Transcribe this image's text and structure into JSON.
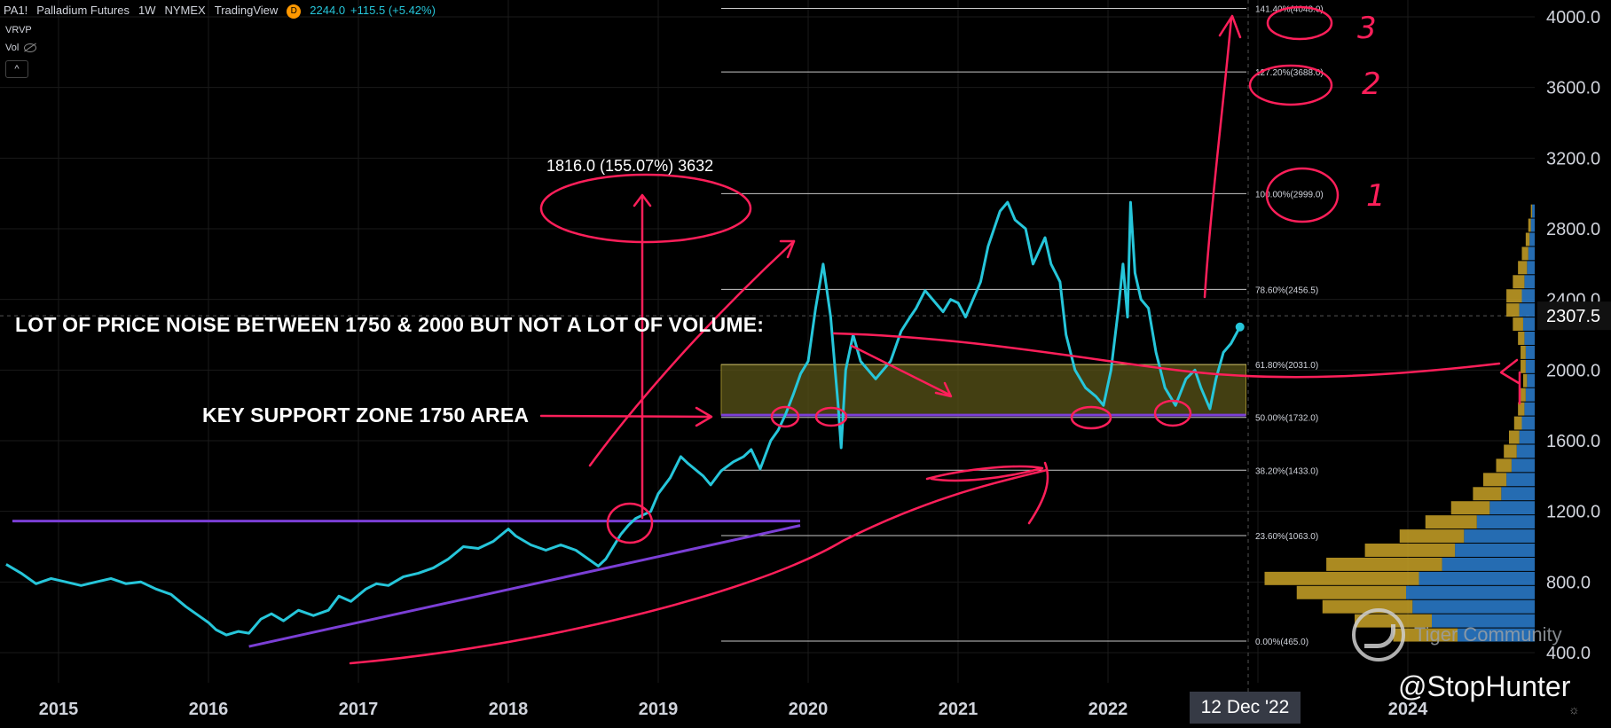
{
  "header": {
    "symbol": "PA1!",
    "name": "Palladium Futures",
    "interval": "1W",
    "exchange": "NYMEX",
    "source": "TradingView",
    "badge": "D",
    "last_price": "2244.0",
    "change": "+115.5 (+5.42%)",
    "indicator_1": "VRVP",
    "indicator_2": "Vol",
    "collapse_label": "^"
  },
  "annotations": {
    "price_noise": "LOT OF PRICE NOISE BETWEEN 1750 & 2000 BUT NOT A LOT OF VOLUME:",
    "support_zone": "KEY SUPPORT ZONE 1750 AREA",
    "measure": "1816.0 (155.07%) 3632",
    "circle_labels": [
      "1",
      "2",
      "3"
    ]
  },
  "price_axis": {
    "ticks": [
      "4000.0",
      "3600.0",
      "3200.0",
      "2800.0",
      "2400.0",
      "2000.0",
      "1600.0",
      "1200.0",
      "800.0",
      "400.0"
    ],
    "current_price_label": "2307.5"
  },
  "time_axis": {
    "ticks": [
      "2015",
      "2016",
      "2017",
      "2018",
      "2019",
      "2020",
      "2021",
      "2022",
      "2024"
    ],
    "crosshair_date": "12 Dec '22"
  },
  "fib_levels": [
    {
      "label": "141.40%(4048.0)",
      "price": 4048
    },
    {
      "label": "127.20%(3688.0)",
      "price": 3688
    },
    {
      "label": "100.00%(2999.0)",
      "price": 2999
    },
    {
      "label": "78.60%(2456.5)",
      "price": 2456.5
    },
    {
      "label": "61.80%(2031.0)",
      "price": 2031
    },
    {
      "label": "50.00%(1732.0)",
      "price": 1732
    },
    {
      "label": "38.20%(1433.0)",
      "price": 1433
    },
    {
      "label": "23.60%(1063.0)",
      "price": 1063
    },
    {
      "label": "0.00%(465.0)",
      "price": 465
    }
  ],
  "watermark": {
    "brand": "Tiger Community",
    "author": "@StopHunter"
  },
  "colors": {
    "background": "#000000",
    "price_line": "#26c6da",
    "annotation": "#ff1f5a",
    "trendline": "#7b3fd6",
    "zone_fill": "#5a5418",
    "zone_border": "#c9b53a",
    "vp_up": "#2c7fd1",
    "vp_down": "#c9a227",
    "fib_line": "#c8c8c8"
  },
  "chart_data": {
    "type": "line",
    "title": "Palladium Futures",
    "xlabel": "",
    "ylabel": "",
    "ylim": [
      300,
      4150
    ],
    "xlim": [
      2014.6,
      2024.6
    ],
    "series": [
      {
        "values": [
          [
            2014.65,
            900
          ],
          [
            2014.75,
            850
          ],
          [
            2014.85,
            790
          ],
          [
            2014.95,
            820
          ],
          [
            2015.05,
            800
          ],
          [
            2015.15,
            780
          ],
          [
            2015.25,
            800
          ],
          [
            2015.35,
            820
          ],
          [
            2015.45,
            790
          ],
          [
            2015.55,
            800
          ],
          [
            2015.65,
            760
          ],
          [
            2015.75,
            730
          ],
          [
            2015.85,
            660
          ],
          [
            2015.95,
            600
          ],
          [
            2016.0,
            570
          ],
          [
            2016.05,
            530
          ],
          [
            2016.12,
            500
          ],
          [
            2016.2,
            520
          ],
          [
            2016.27,
            510
          ],
          [
            2016.35,
            590
          ],
          [
            2016.42,
            620
          ],
          [
            2016.5,
            580
          ],
          [
            2016.6,
            640
          ],
          [
            2016.7,
            610
          ],
          [
            2016.8,
            640
          ],
          [
            2016.87,
            720
          ],
          [
            2016.95,
            690
          ],
          [
            2017.05,
            760
          ],
          [
            2017.12,
            790
          ],
          [
            2017.2,
            780
          ],
          [
            2017.3,
            830
          ],
          [
            2017.4,
            850
          ],
          [
            2017.5,
            880
          ],
          [
            2017.6,
            930
          ],
          [
            2017.7,
            1000
          ],
          [
            2017.8,
            990
          ],
          [
            2017.9,
            1030
          ],
          [
            2018.0,
            1100
          ],
          [
            2018.05,
            1060
          ],
          [
            2018.15,
            1010
          ],
          [
            2018.25,
            980
          ],
          [
            2018.35,
            1010
          ],
          [
            2018.45,
            980
          ],
          [
            2018.55,
            920
          ],
          [
            2018.6,
            890
          ],
          [
            2018.65,
            930
          ],
          [
            2018.75,
            1070
          ],
          [
            2018.8,
            1120
          ],
          [
            2018.85,
            1160
          ],
          [
            2018.95,
            1200
          ],
          [
            2019.0,
            1300
          ],
          [
            2019.08,
            1390
          ],
          [
            2019.15,
            1510
          ],
          [
            2019.2,
            1470
          ],
          [
            2019.3,
            1400
          ],
          [
            2019.35,
            1350
          ],
          [
            2019.42,
            1430
          ],
          [
            2019.5,
            1480
          ],
          [
            2019.57,
            1510
          ],
          [
            2019.62,
            1550
          ],
          [
            2019.68,
            1440
          ],
          [
            2019.75,
            1600
          ],
          [
            2019.8,
            1660
          ],
          [
            2019.85,
            1750
          ],
          [
            2019.9,
            1860
          ],
          [
            2019.95,
            1980
          ],
          [
            2020.0,
            2050
          ],
          [
            2020.05,
            2350
          ],
          [
            2020.1,
            2600
          ],
          [
            2020.15,
            2300
          ],
          [
            2020.18,
            2000
          ],
          [
            2020.2,
            1800
          ],
          [
            2020.22,
            1560
          ],
          [
            2020.25,
            2000
          ],
          [
            2020.3,
            2200
          ],
          [
            2020.35,
            2050
          ],
          [
            2020.45,
            1950
          ],
          [
            2020.55,
            2050
          ],
          [
            2020.62,
            2220
          ],
          [
            2020.68,
            2300
          ],
          [
            2020.72,
            2350
          ],
          [
            2020.78,
            2450
          ],
          [
            2020.85,
            2380
          ],
          [
            2020.9,
            2330
          ],
          [
            2020.95,
            2400
          ],
          [
            2021.0,
            2380
          ],
          [
            2021.05,
            2300
          ],
          [
            2021.1,
            2400
          ],
          [
            2021.15,
            2500
          ],
          [
            2021.2,
            2700
          ],
          [
            2021.28,
            2900
          ],
          [
            2021.33,
            2950
          ],
          [
            2021.38,
            2850
          ],
          [
            2021.45,
            2800
          ],
          [
            2021.5,
            2600
          ],
          [
            2021.58,
            2750
          ],
          [
            2021.62,
            2600
          ],
          [
            2021.68,
            2500
          ],
          [
            2021.72,
            2200
          ],
          [
            2021.78,
            2000
          ],
          [
            2021.85,
            1900
          ],
          [
            2021.92,
            1850
          ],
          [
            2021.97,
            1800
          ],
          [
            2022.02,
            2000
          ],
          [
            2022.07,
            2350
          ],
          [
            2022.1,
            2600
          ],
          [
            2022.13,
            2300
          ],
          [
            2022.15,
            2950
          ],
          [
            2022.18,
            2550
          ],
          [
            2022.22,
            2400
          ],
          [
            2022.27,
            2350
          ],
          [
            2022.32,
            2100
          ],
          [
            2022.38,
            1900
          ],
          [
            2022.45,
            1800
          ],
          [
            2022.52,
            1950
          ],
          [
            2022.58,
            2000
          ],
          [
            2022.62,
            1900
          ],
          [
            2022.68,
            1780
          ],
          [
            2022.72,
            1950
          ],
          [
            2022.77,
            2100
          ],
          [
            2022.82,
            2150
          ],
          [
            2022.88,
            2244
          ]
        ]
      }
    ],
    "last_point": [
      2022.88,
      2244
    ],
    "support_zone": {
      "low": 1745,
      "high": 2031,
      "x": [
        2019.42,
        2022.92
      ]
    },
    "trendlines": [
      {
        "from": [
          2015.0,
          1145
        ],
        "to": [
          2019.95,
          1145
        ]
      },
      {
        "from": [
          2016.27,
          435
        ],
        "to": [
          2019.95,
          1120
        ]
      }
    ],
    "grid": true,
    "legend": "none"
  },
  "volume_profile": {
    "prices": [
      2900,
      2820,
      2740,
      2660,
      2580,
      2500,
      2420,
      2340,
      2260,
      2180,
      2100,
      2020,
      1940,
      1860,
      1780,
      1700,
      1620,
      1540,
      1460,
      1380,
      1300,
      1220,
      1140,
      1060,
      980,
      900,
      820,
      740,
      660,
      580,
      500
    ],
    "up": [
      0.02,
      0.03,
      0.04,
      0.05,
      0.06,
      0.08,
      0.1,
      0.12,
      0.09,
      0.08,
      0.07,
      0.07,
      0.06,
      0.07,
      0.08,
      0.1,
      0.12,
      0.14,
      0.18,
      0.22,
      0.26,
      0.35,
      0.45,
      0.55,
      0.62,
      0.72,
      0.9,
      1.0,
      0.95,
      0.8,
      0.6
    ],
    "down": [
      0.01,
      0.02,
      0.03,
      0.05,
      0.07,
      0.09,
      0.12,
      0.1,
      0.08,
      0.05,
      0.04,
      0.04,
      0.03,
      0.04,
      0.05,
      0.06,
      0.08,
      0.1,
      0.12,
      0.18,
      0.22,
      0.3,
      0.4,
      0.5,
      0.7,
      0.9,
      1.2,
      0.85,
      0.7,
      0.6,
      0.5
    ]
  }
}
